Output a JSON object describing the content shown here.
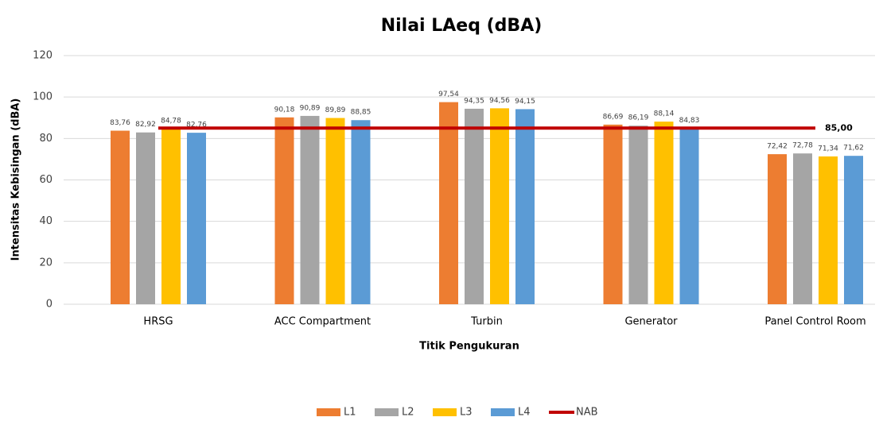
{
  "chart_data": {
    "type": "bar",
    "title": "Nilai LAeq (dBA)",
    "x_label": "Titik Pengukuran",
    "y_label": "Intensitas Kebisingan (dBA)",
    "categories": [
      "HRSG",
      "ACC Compartment",
      "Turbin",
      "Generator",
      "Panel Control Room"
    ],
    "series": [
      {
        "name": "L1",
        "color": "#ed7d31",
        "values": [
          83.76,
          90.18,
          97.54,
          86.69,
          72.42
        ],
        "value_labels": [
          "83,76",
          "90,18",
          "97,54",
          "86,69",
          "72,42"
        ]
      },
      {
        "name": "L2",
        "color": "#a5a5a5",
        "values": [
          82.92,
          90.89,
          94.35,
          86.19,
          72.78
        ],
        "value_labels": [
          "82,92",
          "90,89",
          "94,35",
          "86,19",
          "72,78"
        ]
      },
      {
        "name": "L3",
        "color": "#ffc000",
        "values": [
          84.78,
          89.89,
          94.56,
          88.14,
          71.34
        ],
        "value_labels": [
          "84,78",
          "89,89",
          "94,56",
          "88,14",
          "71,34"
        ]
      },
      {
        "name": "L4",
        "color": "#5b9bd5",
        "values": [
          82.76,
          88.85,
          94.15,
          84.83,
          71.62
        ],
        "value_labels": [
          "82,76",
          "88,85",
          "94,15",
          "84,83",
          "71,62"
        ]
      },
      {
        "name": "NAB",
        "type": "line",
        "color": "#c00000",
        "values": [
          85,
          85,
          85,
          85,
          85
        ],
        "value_labels": [
          null,
          null,
          null,
          null,
          "85,00"
        ]
      }
    ],
    "ylim": [
      0,
      120
    ],
    "yticks": [
      0,
      20,
      40,
      60,
      80,
      100,
      120
    ],
    "grid": true,
    "legend": "bottom"
  }
}
